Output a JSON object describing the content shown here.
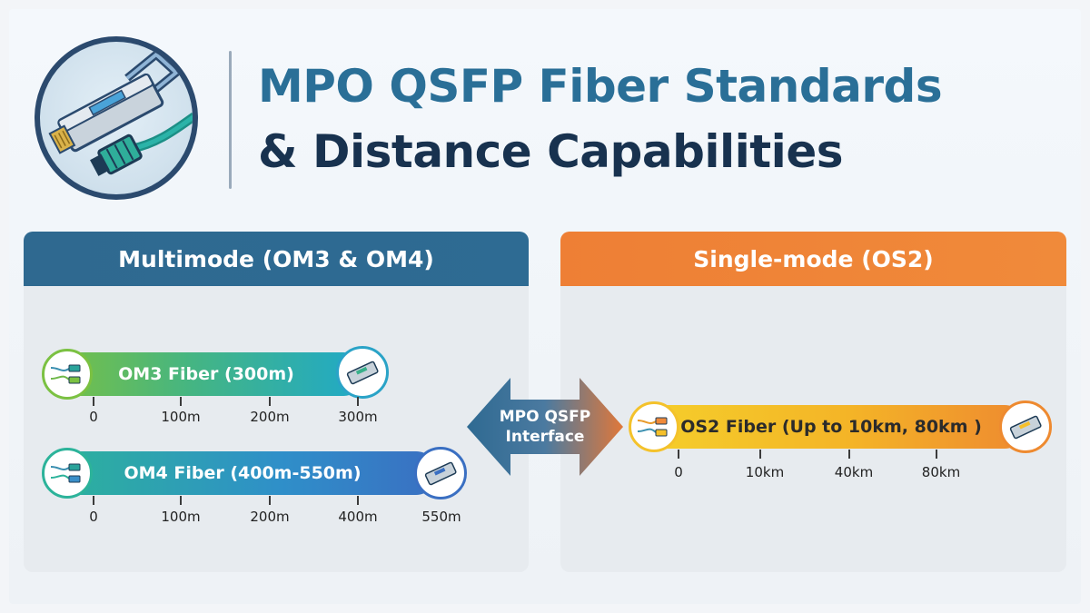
{
  "header": {
    "title_line1": "MPO QSFP Fiber Standards",
    "title_line2": "& Distance Capabilities",
    "logo_icon": "qsfp-transceiver-icon"
  },
  "colors": {
    "title_blue": "#2a6f97",
    "title_navy": "#18324f",
    "multimode_header": "#2f6990",
    "singlemode_header": "#ee7f35"
  },
  "multimode": {
    "heading": "Multimode (OM3 & OM4)",
    "fibers": [
      {
        "label": "OM3 Fiber (300m)",
        "ticks": [
          "0",
          "100m",
          "200m",
          "300m"
        ]
      },
      {
        "label": "OM4 Fiber (400m-550m)",
        "ticks": [
          "0",
          "100m",
          "200m",
          "400m",
          "550m"
        ]
      }
    ]
  },
  "interface": {
    "line1": "MPO QSFP",
    "line2": "Interface"
  },
  "singlemode": {
    "heading": "Single-mode (OS2)",
    "fibers": [
      {
        "label": "OS2 Fiber (Up to 10km, 80km )",
        "ticks": [
          "0",
          "10km",
          "40km",
          "80km"
        ]
      }
    ]
  }
}
